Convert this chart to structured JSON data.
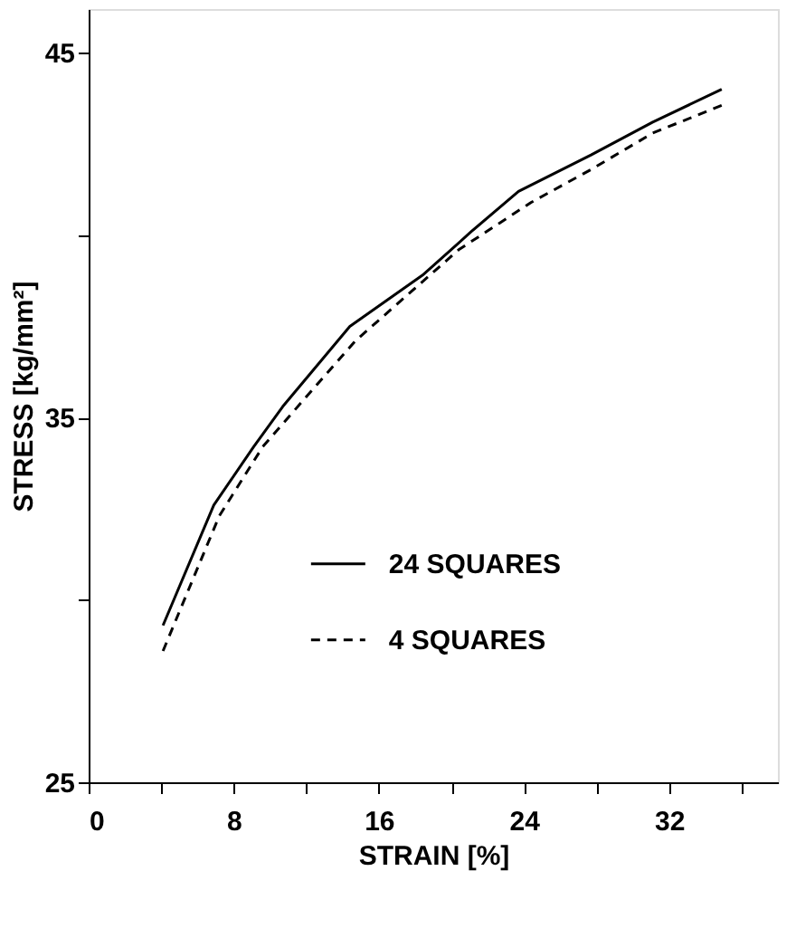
{
  "chart_data": {
    "type": "line",
    "xlabel": "STRAIN [%]",
    "ylabel": "STRESS [kg/mm²]",
    "xlim": [
      0,
      38
    ],
    "ylim": [
      25,
      46.2
    ],
    "xticks": [
      0,
      {
        "value": 4,
        "label": null
      },
      8,
      {
        "value": 12,
        "label": null
      },
      16,
      {
        "value": 20,
        "label": null
      },
      24,
      {
        "value": 28,
        "label": null
      },
      32,
      {
        "value": 36,
        "label": null
      }
    ],
    "yticks": [
      25,
      {
        "value": 30,
        "label": null
      },
      35,
      {
        "value": 40,
        "label": null
      },
      45
    ],
    "grid": false,
    "legend": "center right",
    "marker": "none",
    "series": [
      {
        "name": "24 SQUARES",
        "color": "#000000",
        "line_style": "solid",
        "x": [
          4.1,
          6.9,
          9.1,
          10.7,
          14.4,
          18.4,
          21.1,
          23.7,
          27.7,
          31.1,
          34.9
        ],
        "values": [
          29.3,
          32.6,
          34.2,
          35.3,
          37.5,
          38.9,
          40.1,
          41.2,
          42.2,
          43.1,
          44.0
        ]
      },
      {
        "name": "4 SQUARES",
        "color": "#000000",
        "line_style": "dashed",
        "x": [
          4.1,
          7.2,
          9.6,
          11.0,
          14.7,
          20.4,
          24.4,
          27.7,
          31.1,
          35.1
        ],
        "values": [
          28.6,
          32.3,
          34.2,
          35.0,
          37.1,
          39.6,
          40.9,
          41.8,
          42.8,
          43.6
        ]
      }
    ]
  }
}
